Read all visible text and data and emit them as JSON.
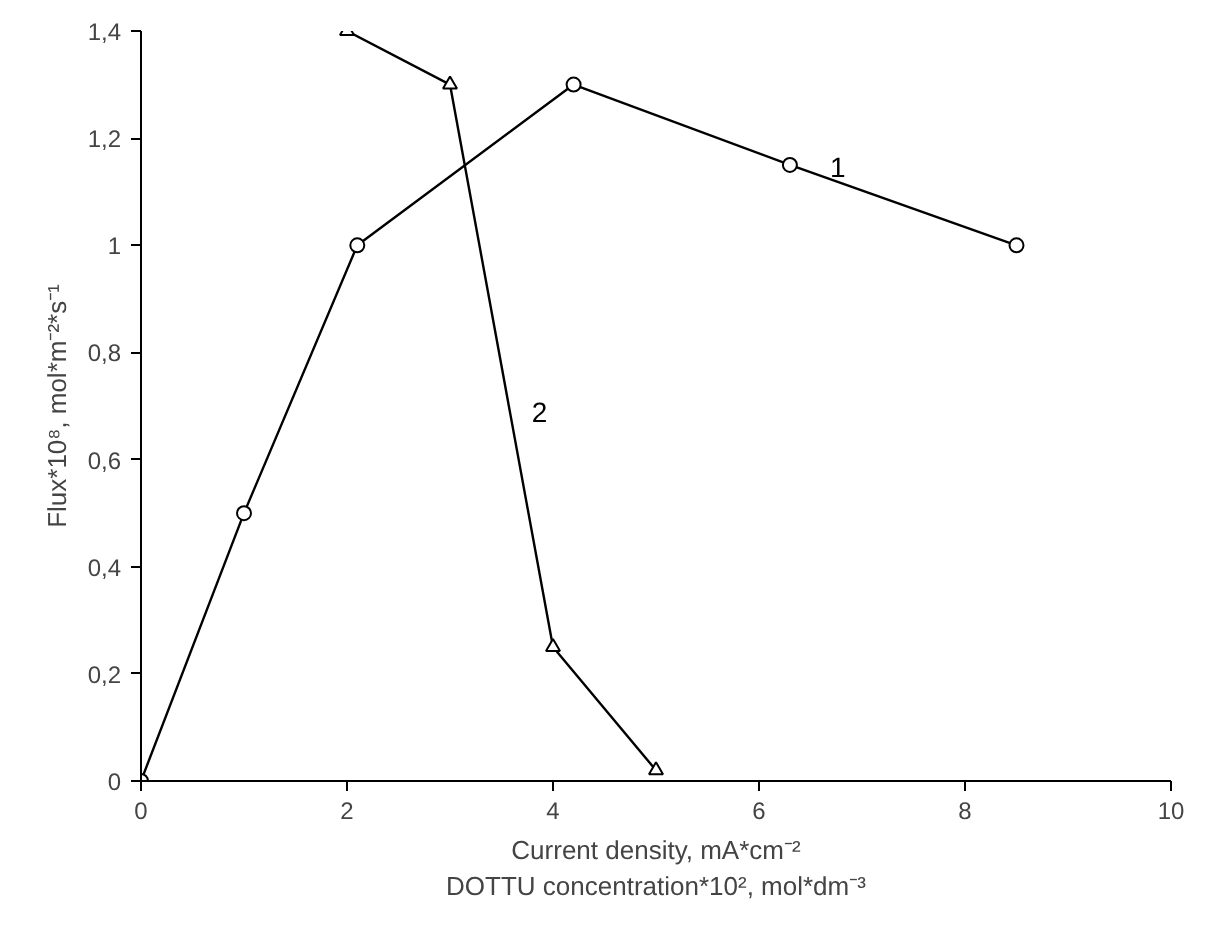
{
  "chart_data": {
    "type": "line",
    "xlabel": "Current density, mA*cm⁻²\nDOTTU concentration*10², mol*dm⁻³",
    "ylabel": "Flux*10⁸, mol*m⁻²*s⁻¹",
    "series": [
      {
        "name": "1",
        "color": "#000000",
        "marker": "circle",
        "x": [
          0,
          1,
          2.1,
          4.2,
          6.3,
          8.5
        ],
        "values": [
          0,
          0.5,
          1.0,
          1.3,
          1.15,
          1.0
        ]
      },
      {
        "name": "2",
        "color": "#000000",
        "marker": "triangle",
        "x": [
          2,
          3,
          4,
          5
        ],
        "values": [
          1.4,
          1.3,
          0.25,
          0.02
        ]
      }
    ],
    "xlim": [
      0,
      10
    ],
    "xticks": [
      0,
      2,
      4,
      6,
      8,
      10
    ],
    "ylim": [
      0,
      1.4
    ],
    "yticks": [
      0,
      {
        "value": 0.2,
        "label": "0,2"
      },
      {
        "value": 0.4,
        "label": "0,4"
      },
      {
        "value": 0.6,
        "label": "0,6"
      },
      {
        "value": 0.8,
        "label": "0,8"
      },
      1,
      {
        "value": 1.2,
        "label": "1,2"
      },
      {
        "value": 1.4,
        "label": "1,4"
      }
    ],
    "grid": false,
    "line_style": "solid"
  }
}
